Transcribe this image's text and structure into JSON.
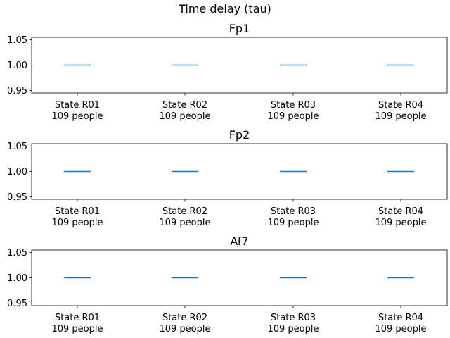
{
  "figure": {
    "suptitle": "Time delay (tau)"
  },
  "chart_data": [
    {
      "type": "box",
      "title": "Fp1",
      "categories": [
        "State R01\n109 people",
        "State R02\n109 people",
        "State R03\n109 people",
        "State R04\n109 people"
      ],
      "values": [
        1.0,
        1.0,
        1.0,
        1.0
      ],
      "ylim": [
        0.945,
        1.055
      ],
      "yticks": [
        "0.95",
        "1.00",
        "1.05"
      ],
      "ytick_values": [
        0.95,
        1.0,
        1.05
      ],
      "series_color": "#1f77b4",
      "grid": false,
      "legend": "none"
    },
    {
      "type": "box",
      "title": "Fp2",
      "categories": [
        "State R01\n109 people",
        "State R02\n109 people",
        "State R03\n109 people",
        "State R04\n109 people"
      ],
      "values": [
        1.0,
        1.0,
        1.0,
        1.0
      ],
      "ylim": [
        0.945,
        1.055
      ],
      "yticks": [
        "0.95",
        "1.00",
        "1.05"
      ],
      "ytick_values": [
        0.95,
        1.0,
        1.05
      ],
      "series_color": "#1f77b4",
      "grid": false,
      "legend": "none"
    },
    {
      "type": "box",
      "title": "Af7",
      "categories": [
        "State R01\n109 people",
        "State R02\n109 people",
        "State R03\n109 people",
        "State R04\n109 people"
      ],
      "values": [
        1.0,
        1.0,
        1.0,
        1.0
      ],
      "ylim": [
        0.945,
        1.055
      ],
      "yticks": [
        "0.95",
        "1.00",
        "1.05"
      ],
      "ytick_values": [
        0.95,
        1.0,
        1.05
      ],
      "series_color": "#1f77b4",
      "grid": false,
      "legend": "none"
    }
  ]
}
